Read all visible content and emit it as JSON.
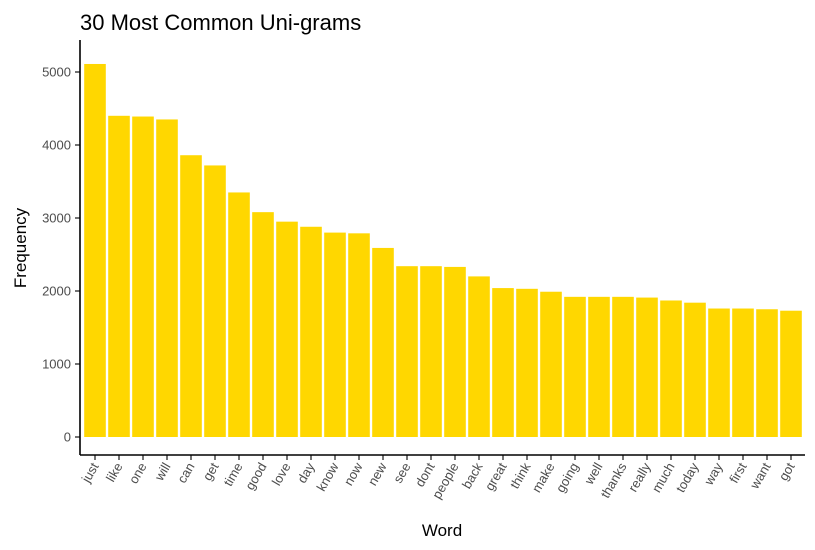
{
  "chart_data": {
    "type": "bar",
    "title": "30 Most Common Uni-grams",
    "xlabel": "Word",
    "ylabel": "Frequency",
    "categories": [
      "just",
      "like",
      "one",
      "will",
      "can",
      "get",
      "time",
      "good",
      "love",
      "day",
      "know",
      "now",
      "new",
      "see",
      "dont",
      "people",
      "back",
      "great",
      "think",
      "make",
      "going",
      "well",
      "thanks",
      "really",
      "much",
      "today",
      "way",
      "first",
      "want",
      "got"
    ],
    "values": [
      5110,
      4400,
      4390,
      4350,
      3860,
      3720,
      3350,
      3080,
      2950,
      2880,
      2800,
      2790,
      2590,
      2340,
      2340,
      2330,
      2200,
      2040,
      2030,
      1990,
      1920,
      1920,
      1920,
      1910,
      1870,
      1840,
      1760,
      1760,
      1750,
      1730
    ],
    "yticks": [
      0,
      1000,
      2000,
      3000,
      4000,
      5000
    ],
    "ylim": [
      0,
      5350
    ],
    "bar_color": "#FFD700",
    "grid": false,
    "legend": "none"
  }
}
